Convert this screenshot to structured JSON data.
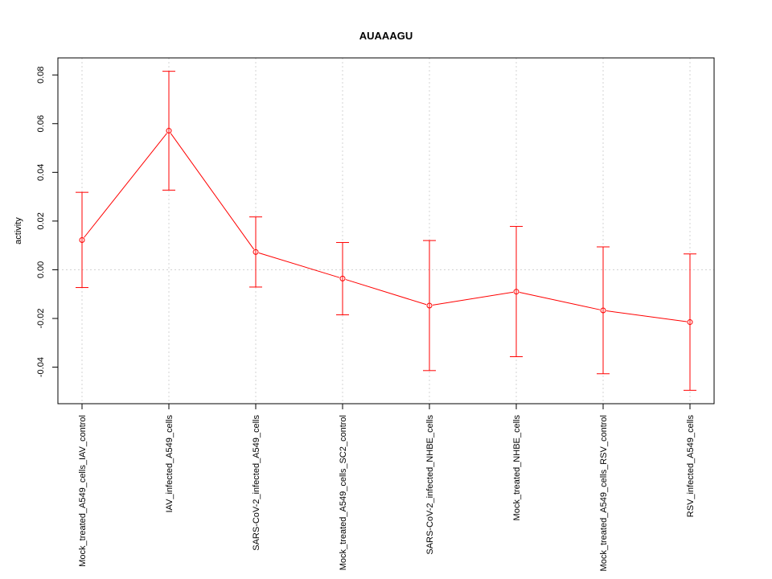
{
  "chart_data": {
    "type": "line",
    "title": "AUAAAGU",
    "xlabel": "",
    "ylabel": "activity",
    "ylim": [
      -0.055,
      0.087
    ],
    "yticks": [
      -0.04,
      -0.02,
      0.0,
      0.02,
      0.04,
      0.06,
      0.08
    ],
    "ytick_labels": [
      "-0.04",
      "-0.02",
      "0.00",
      "0.02",
      "0.04",
      "0.06",
      "0.08"
    ],
    "grid": true,
    "categories": [
      "Mock_treated_A549_cells_IAV_control",
      "IAV_infected_A549_cells",
      "SARS-CoV-2_infected_A549_cells",
      "Mock_treated_A549_cells_SC2_control",
      "SARS-CoV-2_infected_NHBE_cells",
      "Mock_treated_NHBE_cells",
      "Mock_treated_A549_cells_RSV_control",
      "RSV_infected_A549_cells"
    ],
    "series": [
      {
        "values": [
          0.0122,
          0.0571,
          0.0073,
          -0.0036,
          -0.0147,
          -0.009,
          -0.0167,
          -0.0215
        ],
        "upper": [
          0.0318,
          0.0815,
          0.0217,
          0.0112,
          0.012,
          0.0178,
          0.0094,
          0.0065
        ],
        "lower": [
          -0.0073,
          0.0327,
          -0.0071,
          -0.0185,
          -0.0414,
          -0.0357,
          -0.0427,
          -0.0495
        ],
        "color": "#ff0000"
      }
    ],
    "grid_color": "#d3d3d3"
  }
}
